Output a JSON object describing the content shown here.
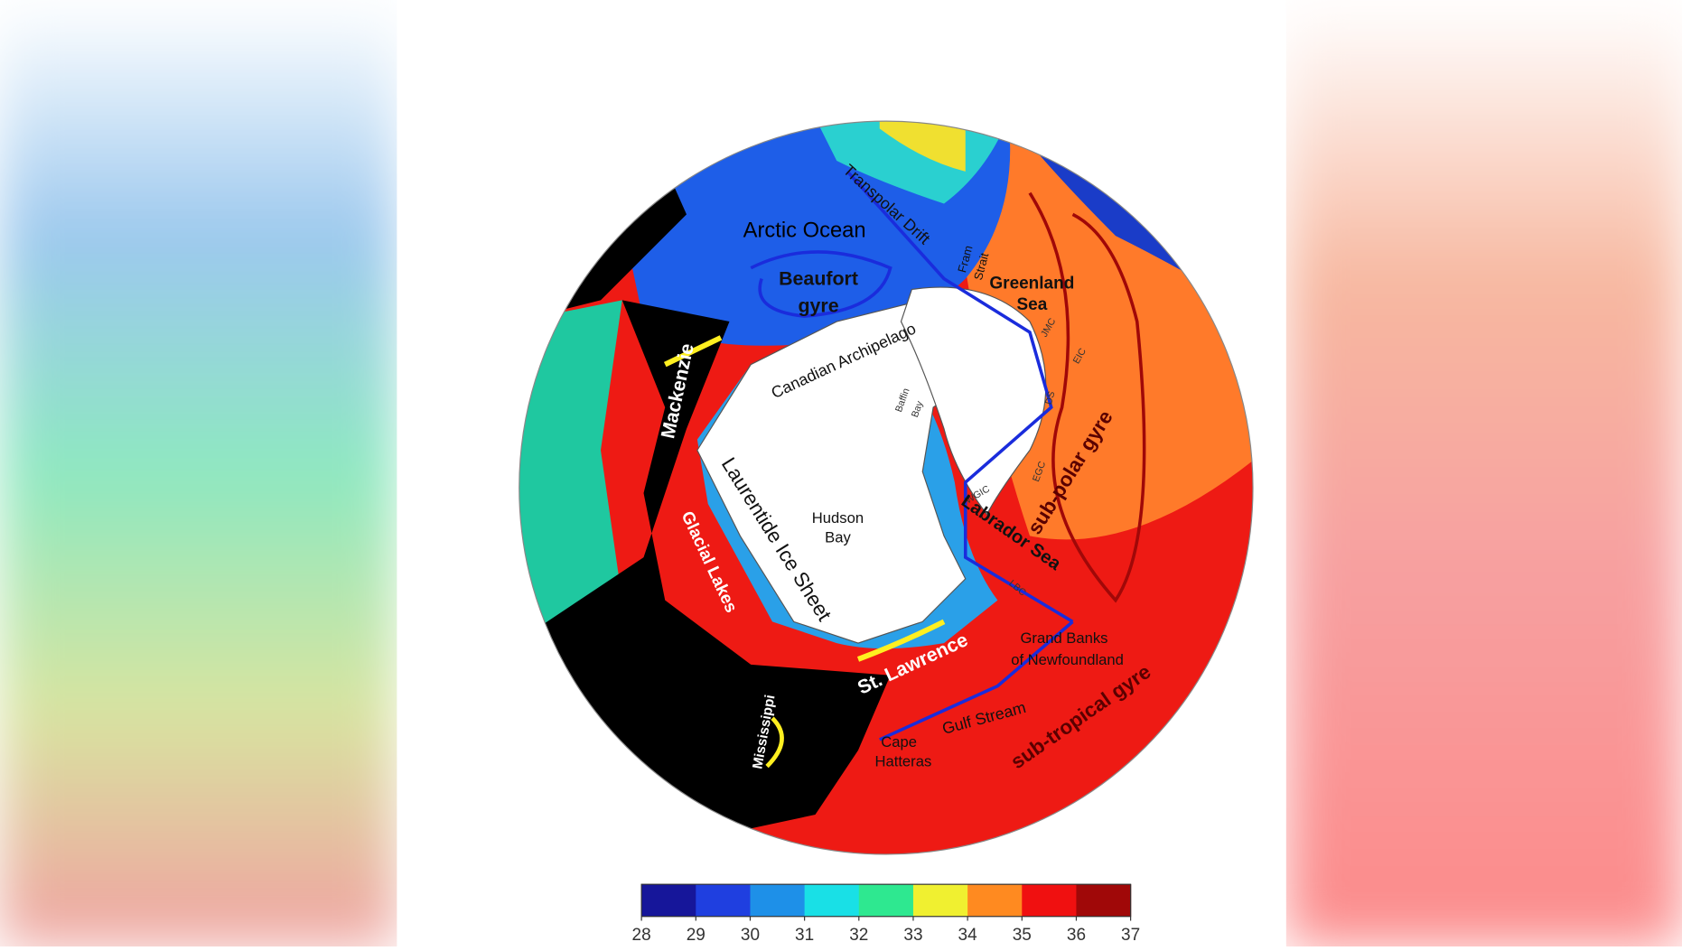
{
  "map": {
    "labels": {
      "arctic_ocean": "Arctic Ocean",
      "beaufort": "Beaufort",
      "gyre": "gyre",
      "transpolar": "Transpolar Drift",
      "fram": "Fram",
      "strait": "Strait",
      "greenland": "Greenland",
      "sea": "Sea",
      "jmc": "JMC",
      "eic": "EIC",
      "ds": "DS",
      "egc": "EGC",
      "wgic": "WGIC",
      "lbc": "LBC",
      "canadian": "Canadian Archipelago",
      "baffin": "Baffin",
      "bay": "Bay",
      "mackenzie": "Mackenzie",
      "hudson": "Hudson",
      "hudson_bay": "Bay",
      "laurentide": "Laurentide Ice Sheet",
      "labrador": "Labrador Sea",
      "subpolar": "sub-polar gyre",
      "glacial": "Glacial Lakes",
      "grand_banks": "Grand Banks",
      "newfoundland": "of Newfoundland",
      "st_lawrence": "St. Lawrence",
      "gulf": "Gulf Stream",
      "subtropical": "sub-tropical gyre",
      "mississippi": "Mississippi",
      "cape": "Cape",
      "hatteras": "Hatteras"
    }
  },
  "colorbar": {
    "colors": [
      "#16169a",
      "#1f3fe0",
      "#1e90e8",
      "#19e0e6",
      "#2ee890",
      "#f0f030",
      "#ff8a20",
      "#f01010",
      "#a00808"
    ],
    "ticks": [
      28,
      29,
      30,
      31,
      32,
      33,
      34,
      35,
      36,
      37
    ]
  }
}
